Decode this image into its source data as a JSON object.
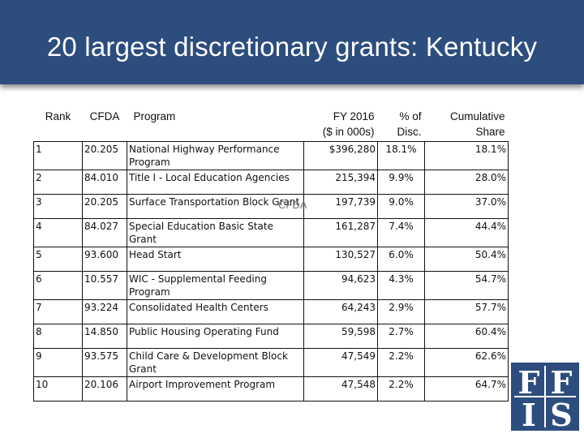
{
  "title": "20 largest discretionary grants: Kentucky",
  "columns": {
    "rank": "Rank",
    "cfda": "CFDA",
    "program": "Program",
    "fy_line1": "FY 2016",
    "fy_line2": "($ in 000s)",
    "pct_line1": "% of",
    "pct_line2": "Disc.",
    "cum_line1": "Cumulative",
    "cum_line2": "Share"
  },
  "rows": [
    {
      "rank": "1",
      "cfda": "20.205",
      "program": "National Highway Performance Program",
      "amount": "$396,280",
      "pct": "18.1%",
      "cumulative": "18.1%"
    },
    {
      "rank": "2",
      "cfda": "84.010",
      "program": "Title I - Local Education Agencies",
      "amount": "215,394",
      "pct": "9.9%",
      "cumulative": "28.0%"
    },
    {
      "rank": "3",
      "cfda": "20.205",
      "program": "Surface Transportation Block Grant",
      "amount": "197,739",
      "pct": "9.0%",
      "cumulative": "37.0%"
    },
    {
      "rank": "4",
      "cfda": "84.027",
      "program": "Special Education Basic State Grant",
      "amount": "161,287",
      "pct": "7.4%",
      "cumulative": "44.4%"
    },
    {
      "rank": "5",
      "cfda": "93.600",
      "program": "Head Start",
      "amount": "130,527",
      "pct": "6.0%",
      "cumulative": "50.4%"
    },
    {
      "rank": "6",
      "cfda": "10.557",
      "program": "WIC - Supplemental Feeding Program",
      "amount": "94,623",
      "pct": "4.3%",
      "cumulative": "54.7%"
    },
    {
      "rank": "7",
      "cfda": "93.224",
      "program": "Consolidated Health Centers",
      "amount": "64,243",
      "pct": "2.9%",
      "cumulative": "57.7%"
    },
    {
      "rank": "8",
      "cfda": "14.850",
      "program": "Public Housing Operating Fund",
      "amount": "59,598",
      "pct": "2.7%",
      "cumulative": "60.4%"
    },
    {
      "rank": "9",
      "cfda": "93.575",
      "program": "Child Care & Development Block Grant",
      "amount": "47,549",
      "pct": "2.2%",
      "cumulative": "62.6%"
    },
    {
      "rank": "10",
      "cfda": "20.106",
      "program": "Airport Improvement Program",
      "amount": "47,548",
      "pct": "2.2%",
      "cumulative": "64.7%"
    }
  ],
  "stray_text": "CFDA",
  "logo": {
    "text": "FFIS",
    "color": "#2c4d7e"
  }
}
